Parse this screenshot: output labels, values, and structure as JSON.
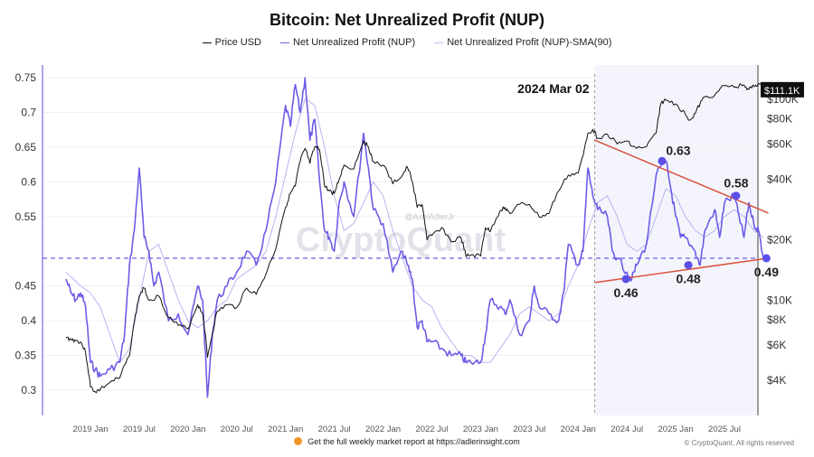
{
  "chart_data": {
    "type": "line",
    "title": "Bitcoin: Net Unrealized Profit (NUP)",
    "legend": [
      {
        "name": "Price USD",
        "color": "#111111"
      },
      {
        "name": "Net Unrealized Profit (NUP)",
        "color": "#6b5ce7"
      },
      {
        "name": "Net Unrealized Profit (NUP)-SMA(90)",
        "color": "#b3acf0"
      }
    ],
    "legend_position": "top-center",
    "left_axis": {
      "ylim": [
        0.27,
        0.77
      ],
      "ticks": [
        0.3,
        0.35,
        0.4,
        0.45,
        0.55,
        0.6,
        0.65,
        0.7,
        0.75
      ],
      "tick_labels": [
        "0.3",
        "0.35",
        "0.4",
        "0.45",
        "0.55",
        "0.6",
        "0.65",
        "0.7",
        "0.75"
      ]
    },
    "right_axis": {
      "scale": "log",
      "ylim": [
        2800,
        150000
      ],
      "ticks": [
        4000,
        6000,
        8000,
        10000,
        20000,
        40000,
        60000,
        80000,
        100000
      ],
      "tick_labels": [
        "$4K",
        "$6K",
        "$8K",
        "$10K",
        "$20K",
        "$40K",
        "$60K",
        "$80K",
        "$100K"
      ],
      "current_value_label": "$111.1K"
    },
    "x_axis": {
      "xlim": [
        2018.75,
        2025.95
      ],
      "ticks": [
        2019.0,
        2019.5,
        2020.0,
        2020.5,
        2021.0,
        2021.5,
        2022.0,
        2022.5,
        2023.0,
        2023.5,
        2024.0,
        2024.5,
        2025.0,
        2025.5
      ],
      "tick_labels": [
        "2019 Jan",
        "2019 Jul",
        "2020 Jan",
        "2020 Jul",
        "2021 Jan",
        "2021 Jul",
        "2022 Jan",
        "2022 Jul",
        "2023 Jan",
        "2023 Jul",
        "2024 Jan",
        "2024 Jul",
        "2025 Jan",
        "2025 Jul"
      ]
    },
    "grid": true,
    "series": [
      {
        "name": "Price USD",
        "axis": "right",
        "x": [
          2018.75,
          2018.8,
          2018.85,
          2018.9,
          2018.95,
          2019.0,
          2019.05,
          2019.1,
          2019.2,
          2019.3,
          2019.4,
          2019.45,
          2019.5,
          2019.55,
          2019.6,
          2019.7,
          2019.8,
          2019.9,
          2020.0,
          2020.1,
          2020.15,
          2020.2,
          2020.25,
          2020.3,
          2020.4,
          2020.5,
          2020.6,
          2020.7,
          2020.8,
          2020.9,
          2021.0,
          2021.05,
          2021.1,
          2021.15,
          2021.2,
          2021.25,
          2021.3,
          2021.35,
          2021.4,
          2021.45,
          2021.5,
          2021.55,
          2021.6,
          2021.7,
          2021.8,
          2021.85,
          2021.9,
          2022.0,
          2022.1,
          2022.2,
          2022.25,
          2022.3,
          2022.35,
          2022.4,
          2022.45,
          2022.5,
          2022.6,
          2022.7,
          2022.8,
          2022.85,
          2022.9,
          2023.0,
          2023.05,
          2023.1,
          2023.2,
          2023.25,
          2023.3,
          2023.4,
          2023.5,
          2023.6,
          2023.7,
          2023.8,
          2023.9,
          2024.0,
          2024.05,
          2024.1,
          2024.15,
          2024.2,
          2024.3,
          2024.4,
          2024.5,
          2024.6,
          2024.7,
          2024.8,
          2024.85,
          2024.9,
          2025.0,
          2025.1,
          2025.15,
          2025.2,
          2025.25,
          2025.3,
          2025.4,
          2025.5,
          2025.6,
          2025.7,
          2025.75,
          2025.8,
          2025.85,
          2025.9
        ],
        "values": [
          6500,
          6400,
          6300,
          6200,
          5500,
          3700,
          3500,
          3600,
          3900,
          4100,
          5300,
          7800,
          10500,
          11500,
          10000,
          10500,
          8200,
          7500,
          7200,
          9500,
          8600,
          5200,
          6800,
          8800,
          9500,
          9200,
          11500,
          10700,
          13500,
          18000,
          29000,
          34000,
          37000,
          49000,
          57000,
          48000,
          58000,
          56000,
          37000,
          35000,
          34000,
          40000,
          47000,
          45000,
          62000,
          58000,
          49000,
          47000,
          38000,
          42000,
          46000,
          39000,
          29000,
          30000,
          20000,
          21000,
          23000,
          19500,
          20500,
          16500,
          16800,
          16600,
          23000,
          22000,
          28000,
          29000,
          27000,
          30000,
          30000,
          26000,
          27000,
          35000,
          42000,
          43000,
          52000,
          68000,
          71000,
          64000,
          67000,
          60000,
          62000,
          57000,
          58000,
          68000,
          96000,
          99000,
          95000,
          84000,
          79000,
          85000,
          95000,
          103000,
          105000,
          117000,
          115000,
          118000,
          112000,
          116000,
          120000,
          111100
        ]
      },
      {
        "name": "Net Unrealized Profit (NUP)",
        "axis": "left",
        "x": [
          2018.75,
          2018.8,
          2018.85,
          2018.9,
          2018.95,
          2019.0,
          2019.05,
          2019.1,
          2019.2,
          2019.3,
          2019.35,
          2019.4,
          2019.45,
          2019.5,
          2019.55,
          2019.6,
          2019.65,
          2019.7,
          2019.8,
          2019.9,
          2020.0,
          2020.1,
          2020.15,
          2020.2,
          2020.25,
          2020.3,
          2020.4,
          2020.5,
          2020.6,
          2020.7,
          2020.8,
          2020.9,
          2021.0,
          2021.05,
          2021.1,
          2021.15,
          2021.2,
          2021.25,
          2021.3,
          2021.35,
          2021.4,
          2021.45,
          2021.5,
          2021.55,
          2021.6,
          2021.7,
          2021.8,
          2021.85,
          2021.9,
          2022.0,
          2022.1,
          2022.2,
          2022.25,
          2022.3,
          2022.35,
          2022.4,
          2022.45,
          2022.5,
          2022.6,
          2022.7,
          2022.8,
          2022.85,
          2022.9,
          2023.0,
          2023.05,
          2023.1,
          2023.2,
          2023.25,
          2023.3,
          2023.4,
          2023.5,
          2023.55,
          2023.6,
          2023.7,
          2023.8,
          2023.85,
          2023.9,
          2024.0,
          2024.05,
          2024.1,
          2024.15,
          2024.2,
          2024.3,
          2024.35,
          2024.4,
          2024.5,
          2024.55,
          2024.6,
          2024.7,
          2024.8,
          2024.9,
          2024.95,
          2025.0,
          2025.05,
          2025.1,
          2025.2,
          2025.25,
          2025.3,
          2025.4,
          2025.45,
          2025.5,
          2025.6,
          2025.65,
          2025.7,
          2025.75,
          2025.8,
          2025.85,
          2025.9
        ],
        "values": [
          0.46,
          0.44,
          0.43,
          0.44,
          0.42,
          0.34,
          0.33,
          0.32,
          0.33,
          0.34,
          0.38,
          0.48,
          0.53,
          0.62,
          0.52,
          0.5,
          0.45,
          0.47,
          0.4,
          0.41,
          0.38,
          0.45,
          0.43,
          0.29,
          0.38,
          0.43,
          0.45,
          0.47,
          0.5,
          0.48,
          0.53,
          0.6,
          0.71,
          0.68,
          0.74,
          0.7,
          0.75,
          0.66,
          0.69,
          0.6,
          0.53,
          0.52,
          0.5,
          0.57,
          0.6,
          0.55,
          0.67,
          0.62,
          0.56,
          0.54,
          0.47,
          0.5,
          0.48,
          0.46,
          0.39,
          0.4,
          0.37,
          0.37,
          0.36,
          0.35,
          0.35,
          0.34,
          0.34,
          0.34,
          0.38,
          0.43,
          0.42,
          0.41,
          0.43,
          0.38,
          0.4,
          0.45,
          0.42,
          0.41,
          0.4,
          0.44,
          0.51,
          0.48,
          0.5,
          0.62,
          0.58,
          0.56,
          0.55,
          0.5,
          0.49,
          0.47,
          0.46,
          0.48,
          0.51,
          0.61,
          0.63,
          0.59,
          0.55,
          0.52,
          0.52,
          0.5,
          0.48,
          0.53,
          0.56,
          0.52,
          0.57,
          0.58,
          0.55,
          0.52,
          0.57,
          0.54,
          0.53,
          0.49
        ]
      },
      {
        "name": "Net Unrealized Profit (NUP)-SMA(90)",
        "axis": "left",
        "x": [
          2018.75,
          2018.9,
          2019.0,
          2019.1,
          2019.2,
          2019.3,
          2019.4,
          2019.5,
          2019.6,
          2019.7,
          2019.8,
          2019.9,
          2020.0,
          2020.1,
          2020.2,
          2020.3,
          2020.4,
          2020.5,
          2020.6,
          2020.7,
          2020.8,
          2020.9,
          2021.0,
          2021.1,
          2021.2,
          2021.3,
          2021.4,
          2021.5,
          2021.6,
          2021.7,
          2021.8,
          2021.9,
          2022.0,
          2022.1,
          2022.2,
          2022.3,
          2022.4,
          2022.5,
          2022.6,
          2022.7,
          2022.8,
          2022.9,
          2023.0,
          2023.1,
          2023.2,
          2023.3,
          2023.4,
          2023.5,
          2023.6,
          2023.7,
          2023.8,
          2023.9,
          2024.0,
          2024.1,
          2024.2,
          2024.3,
          2024.4,
          2024.5,
          2024.6,
          2024.7,
          2024.8,
          2024.9,
          2025.0,
          2025.1,
          2025.2,
          2025.3,
          2025.4,
          2025.5,
          2025.6,
          2025.7,
          2025.8,
          2025.9
        ],
        "values": [
          0.47,
          0.45,
          0.44,
          0.42,
          0.38,
          0.34,
          0.36,
          0.43,
          0.5,
          0.51,
          0.47,
          0.43,
          0.4,
          0.39,
          0.4,
          0.42,
          0.43,
          0.46,
          0.47,
          0.48,
          0.5,
          0.55,
          0.61,
          0.67,
          0.72,
          0.71,
          0.65,
          0.58,
          0.53,
          0.54,
          0.57,
          0.6,
          0.58,
          0.53,
          0.49,
          0.45,
          0.43,
          0.42,
          0.39,
          0.37,
          0.35,
          0.35,
          0.34,
          0.34,
          0.36,
          0.38,
          0.41,
          0.42,
          0.41,
          0.4,
          0.41,
          0.45,
          0.48,
          0.53,
          0.57,
          0.58,
          0.55,
          0.51,
          0.5,
          0.51,
          0.55,
          0.59,
          0.58,
          0.55,
          0.53,
          0.52,
          0.53,
          0.55,
          0.56,
          0.55,
          0.53,
          0.52
        ]
      }
    ],
    "reference_line": {
      "value": 0.49,
      "axis": "left",
      "style": "dashed",
      "color": "#6b5ce7"
    },
    "event_marker": {
      "x": 2024.17,
      "label": "2024 Mar 02",
      "shaded_region": [
        2024.17,
        2025.95
      ]
    },
    "trendlines": [
      {
        "name": "upper-resistance",
        "from": {
          "x": 2024.17,
          "y": 0.66
        },
        "to": {
          "x": 2025.95,
          "y": 0.555
        },
        "color": "#d9533f"
      },
      {
        "name": "lower-support",
        "from": {
          "x": 2024.17,
          "y": 0.455
        },
        "to": {
          "x": 2025.95,
          "y": 0.49
        },
        "color": "#d9533f"
      }
    ],
    "annotations": [
      {
        "x": 2024.86,
        "y": 0.63,
        "label": "0.63",
        "label_pos": "above-right"
      },
      {
        "x": 2025.62,
        "y": 0.58,
        "label": "0.58",
        "label_pos": "above"
      },
      {
        "x": 2024.49,
        "y": 0.46,
        "label": "0.46",
        "label_pos": "below"
      },
      {
        "x": 2025.13,
        "y": 0.48,
        "label": "0.48",
        "label_pos": "below"
      },
      {
        "x": 2025.93,
        "y": 0.49,
        "label": "0.49",
        "label_pos": "below"
      }
    ],
    "watermark": {
      "main": "CryptoQuant",
      "handle": "@AxelAdlerJr"
    }
  },
  "footer": {
    "report_text": "Get the full weekly market report at https://adlerinsight.com",
    "copyright": "© CryptoQuant. All rights reserved"
  }
}
